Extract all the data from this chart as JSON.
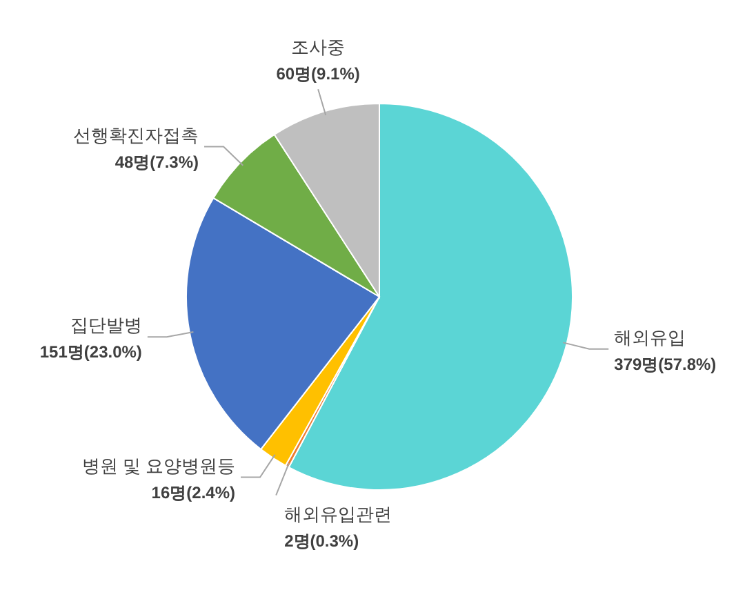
{
  "chart_data": {
    "type": "pie",
    "categories": [
      "해외유입",
      "해외유입관련",
      "병원 및 요양병원등",
      "집단발병",
      "선행확진자접촉",
      "조사중"
    ],
    "values": [
      379,
      2,
      16,
      151,
      48,
      60
    ],
    "value_labels": [
      "379명(57.8%)",
      "2명(0.3%)",
      "16명(2.4%)",
      "151명(23.0%)",
      "48명(7.3%)",
      "60명(9.1%)"
    ],
    "colors": [
      "#5bd5d5",
      "#ed7d31",
      "#ffc000",
      "#4472c4",
      "#70ad47",
      "#bfbfbf"
    ]
  }
}
